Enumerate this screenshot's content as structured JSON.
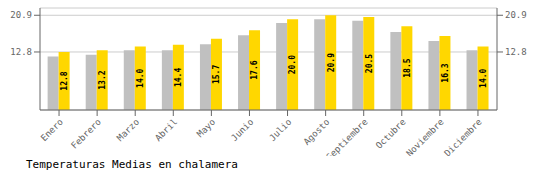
{
  "chart_data": {
    "type": "bar",
    "title": "Temperaturas Medias en chalamera",
    "categories": [
      "Enero",
      "Febrero",
      "Marzo",
      "Abril",
      "Mayo",
      "Junio",
      "Julio",
      "Agosto",
      "Septiembre",
      "Octubre",
      "Noviembre",
      "Diciembre"
    ],
    "series": [
      {
        "color": "#C0C0C0",
        "values": [
          11.8,
          12.2,
          13.2,
          13.2,
          14.5,
          16.5,
          19.2,
          20.0,
          19.7,
          17.2,
          15.2,
          13.2
        ]
      },
      {
        "color": "#FFD700",
        "values": [
          12.8,
          13.2,
          14.0,
          14.4,
          15.7,
          17.6,
          20.0,
          20.9,
          20.5,
          18.5,
          16.3,
          14.0
        ],
        "value_labels": [
          "12.8",
          "13.2",
          "14.0",
          "14.4",
          "15.7",
          "17.6",
          "20.0",
          "20.9",
          "20.5",
          "18.5",
          "16.3",
          "14.0"
        ],
        "data_labels": true
      }
    ],
    "ylim": [
      0,
      22.5
    ],
    "yticks": [
      12.8,
      20.9
    ],
    "grid": true
  }
}
